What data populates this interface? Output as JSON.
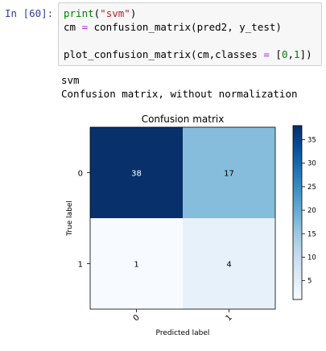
{
  "cell": {
    "prompt": "In [60]:",
    "code": {
      "line1": {
        "fn": "print",
        "open": "(",
        "str": "\"svm\"",
        "close": ")"
      },
      "line2": {
        "lhs": "cm ",
        "op": "=",
        "rest": " confusion_matrix(pred2, y_test)"
      },
      "line3": "",
      "line4": {
        "pre": "plot_confusion_matrix(cm,classes ",
        "op": "=",
        "mid": " [",
        "n0": "0",
        "comma": ",",
        "n1": "1",
        "end": "])"
      }
    }
  },
  "output": {
    "line1": "svm",
    "line2": "Confusion matrix, without normalization"
  },
  "chart_data": {
    "type": "heatmap",
    "title": "Confusion matrix",
    "xlabel": "Predicted label",
    "ylabel": "True label",
    "x_ticks": [
      "0",
      "1"
    ],
    "y_ticks": [
      "0",
      "1"
    ],
    "values": [
      [
        38,
        17
      ],
      [
        1,
        4
      ]
    ],
    "colormap": "Blues",
    "vmin": 1,
    "vmax": 38,
    "colorbar_ticks": [
      5,
      10,
      15,
      20,
      25,
      30,
      35
    ]
  }
}
